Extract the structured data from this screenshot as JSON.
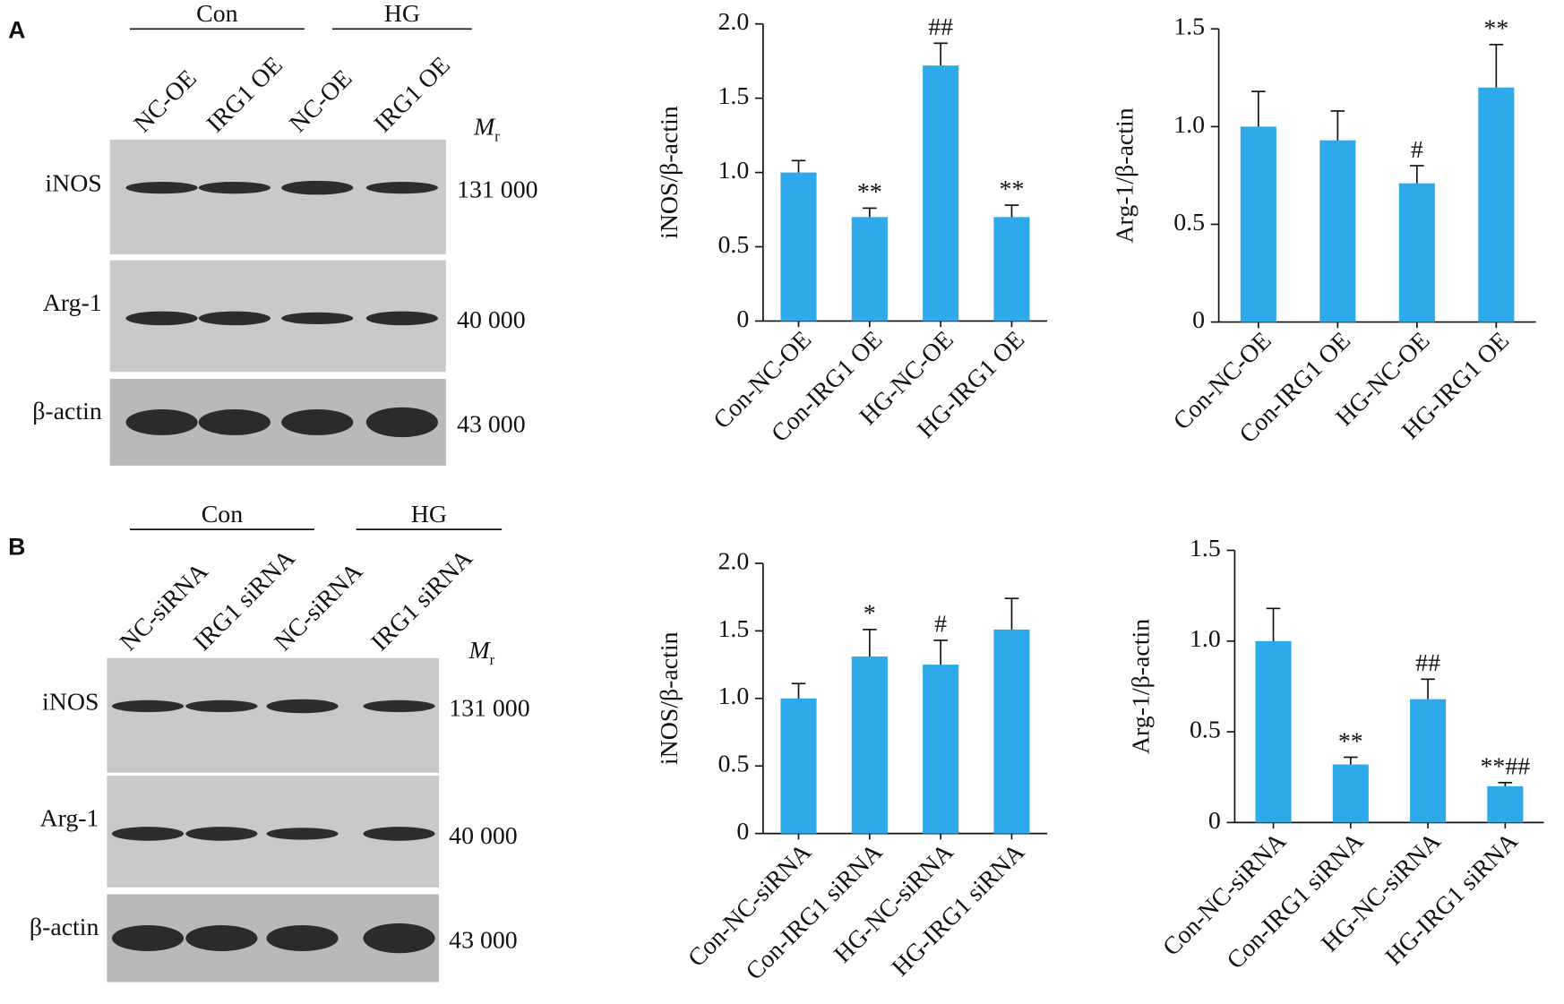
{
  "blots": [
    {
      "letter": "A",
      "groups": [
        "Con",
        "HG"
      ],
      "lanes": [
        "NC-OE",
        "IRG1 OE",
        "NC-OE",
        "IRG1 OE"
      ],
      "mr_symbol": "M",
      "mr_sub": "r",
      "rows": [
        {
          "label": "iNOS",
          "size": "131 000"
        },
        {
          "label": "Arg-1",
          "size": "40 000"
        },
        {
          "label": "β-actin",
          "size": "43 000"
        }
      ]
    },
    {
      "letter": "B",
      "groups": [
        "Con",
        "HG"
      ],
      "lanes": [
        "NC-siRNA",
        "IRG1 siRNA",
        "NC-siRNA",
        "IRG1 siRNA"
      ],
      "mr_symbol": "M",
      "mr_sub": "r",
      "rows": [
        {
          "label": "iNOS",
          "size": "131 000"
        },
        {
          "label": "Arg-1",
          "size": "40 000"
        },
        {
          "label": "β-actin",
          "size": "43 000"
        }
      ]
    }
  ],
  "chart_data": [
    {
      "type": "bar",
      "ylabel": "iNOS/β-actin",
      "categories": [
        "Con-NC-OE",
        "Con-IRG1 OE",
        "HG-NC-OE",
        "HG-IRG1 OE"
      ],
      "values": [
        1.0,
        0.7,
        1.72,
        0.7
      ],
      "errors": [
        0.08,
        0.06,
        0.15,
        0.08
      ],
      "annotations": [
        null,
        "**",
        "##",
        "**"
      ],
      "color": "#2eaaea",
      "ylim": [
        0,
        2
      ],
      "yticks": [
        0,
        0.5,
        {
          "value": 1,
          "label": "1.0"
        },
        1.5,
        {
          "value": 2,
          "label": "2.0"
        }
      ]
    },
    {
      "type": "bar",
      "ylabel": "Arg-1/β-actin",
      "categories": [
        "Con-NC-OE",
        "Con-IRG1 OE",
        "HG-NC-OE",
        "HG-IRG1 OE"
      ],
      "values": [
        1.0,
        0.93,
        0.71,
        1.2
      ],
      "errors": [
        0.18,
        0.15,
        0.09,
        0.22
      ],
      "annotations": [
        null,
        null,
        "#",
        "**"
      ],
      "color": "#2eaaea",
      "ylim": [
        0,
        1.5
      ],
      "yticks": [
        0,
        0.5,
        {
          "value": 1,
          "label": "1.0"
        },
        1.5
      ]
    },
    {
      "type": "bar",
      "ylabel": "iNOS/β-actin",
      "categories": [
        "Con-NC-siRNA",
        "Con-IRG1 siRNA",
        "HG-NC-siRNA",
        "HG-IRG1 siRNA"
      ],
      "values": [
        1.0,
        1.31,
        1.25,
        1.51
      ],
      "errors": [
        0.11,
        0.2,
        0.18,
        0.23
      ],
      "annotations": [
        null,
        "*",
        "#",
        null
      ],
      "color": "#2eaaea",
      "ylim": [
        0,
        2
      ],
      "yticks": [
        0,
        0.5,
        {
          "value": 1,
          "label": "1.0"
        },
        1.5,
        {
          "value": 2,
          "label": "2.0"
        }
      ]
    },
    {
      "type": "bar",
      "ylabel": "Arg-1/β-actin",
      "categories": [
        "Con-NC-siRNA",
        "Con-IRG1 siRNA",
        "HG-NC-siRNA",
        "HG-IRG1 siRNA"
      ],
      "values": [
        1.0,
        0.32,
        0.68,
        0.2
      ],
      "errors": [
        0.18,
        0.04,
        0.11,
        0.02
      ],
      "annotations": [
        null,
        "**",
        "##",
        "**##"
      ],
      "color": "#2eaaea",
      "ylim": [
        0,
        1.5
      ],
      "yticks": [
        0,
        0.5,
        {
          "value": 1,
          "label": "1.0"
        },
        1.5
      ]
    }
  ]
}
